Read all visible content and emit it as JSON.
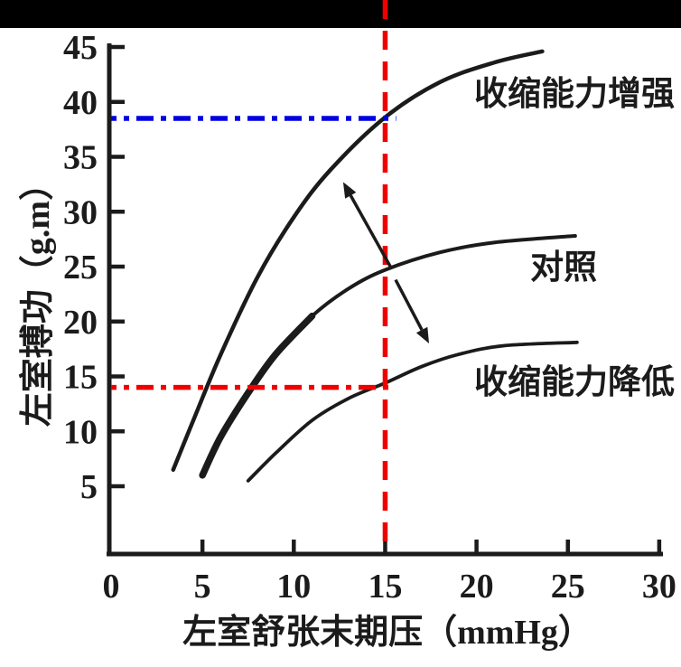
{
  "figure": {
    "top_bar_color": "#000000",
    "background": "#ffffff"
  },
  "colors": {
    "curve": "#1b1b1b",
    "axis": "#1b1b1b",
    "text": "#1b1b1b",
    "red_reference": "#ee0000",
    "blue_reference": "#0000e0"
  },
  "chart_data": {
    "type": "line",
    "title": "",
    "xlabel": "左室舒张末期压（mmHg）",
    "ylabel": "左室搏功（g.m）",
    "xlim": [
      0,
      30
    ],
    "ylim": [
      0,
      45
    ],
    "x_ticks": [
      0,
      5,
      10,
      15,
      20,
      25,
      30
    ],
    "y_ticks": [
      5,
      10,
      15,
      20,
      25,
      30,
      35,
      40,
      45
    ],
    "grid": false,
    "legend_position": "inline-curve-labels",
    "series": [
      {
        "name": "收缩能力增强",
        "label_anchor": {
          "x": 25.36,
          "y": 40.8
        },
        "stroke_width": 4.5,
        "points": [
          [
            3.4,
            6.5
          ],
          [
            4.5,
            11
          ],
          [
            6,
            17
          ],
          [
            8,
            24
          ],
          [
            10,
            29.5
          ],
          [
            12,
            33.8
          ],
          [
            15,
            38.6
          ],
          [
            18,
            41.8
          ],
          [
            21,
            43.6
          ],
          [
            23.6,
            44.6
          ]
        ]
      },
      {
        "name": "对照",
        "label_anchor": {
          "x": 24.77,
          "y": 25.0
        },
        "stroke_width": 4,
        "thick_segment_points": 5,
        "thick_segment_width": 7.5,
        "points": [
          [
            5,
            6
          ],
          [
            6,
            9.5
          ],
          [
            7.5,
            13.5
          ],
          [
            9,
            17
          ],
          [
            11,
            20.5
          ],
          [
            13,
            23
          ],
          [
            15,
            24.7
          ],
          [
            18,
            26.3
          ],
          [
            21,
            27.2
          ],
          [
            25.4,
            27.8
          ]
        ]
      },
      {
        "name": "收缩能力降低",
        "label_anchor": {
          "x": 25.36,
          "y": 14.55
        },
        "stroke_width": 3.8,
        "points": [
          [
            7.5,
            5.5
          ],
          [
            9,
            8
          ],
          [
            11,
            11
          ],
          [
            13,
            13
          ],
          [
            15,
            14.4
          ],
          [
            17,
            15.9
          ],
          [
            19,
            17
          ],
          [
            21.5,
            17.8
          ],
          [
            25.5,
            18.1
          ]
        ]
      }
    ],
    "reference_lines": [
      {
        "name": "edp-15-vertical-red-dashed",
        "axis": "x",
        "value": 15,
        "style": "dashed",
        "color": "#ee0000",
        "spans_full_height": true
      },
      {
        "name": "work-38.5-horizontal-blue-dashdot",
        "axis": "y",
        "value": 38.5,
        "style": "dash-dot",
        "color": "#0000e0",
        "x_start": 0,
        "x_end": 15.6
      },
      {
        "name": "work-14-horizontal-red-dashdot",
        "axis": "y",
        "value": 14,
        "style": "dash-dot",
        "color": "#ee0000",
        "x_start": 0,
        "x_end": 15.35
      }
    ],
    "arrows": [
      {
        "name": "arrow-to-enhanced-curve",
        "from": {
          "x": 15.32,
          "y": 24.9
        },
        "to": {
          "x": 12.7,
          "y": 32.7
        }
      },
      {
        "name": "arrow-to-decreased-curve",
        "from": {
          "x": 15.57,
          "y": 23.8
        },
        "to": {
          "x": 17.4,
          "y": 18.0
        }
      }
    ]
  }
}
